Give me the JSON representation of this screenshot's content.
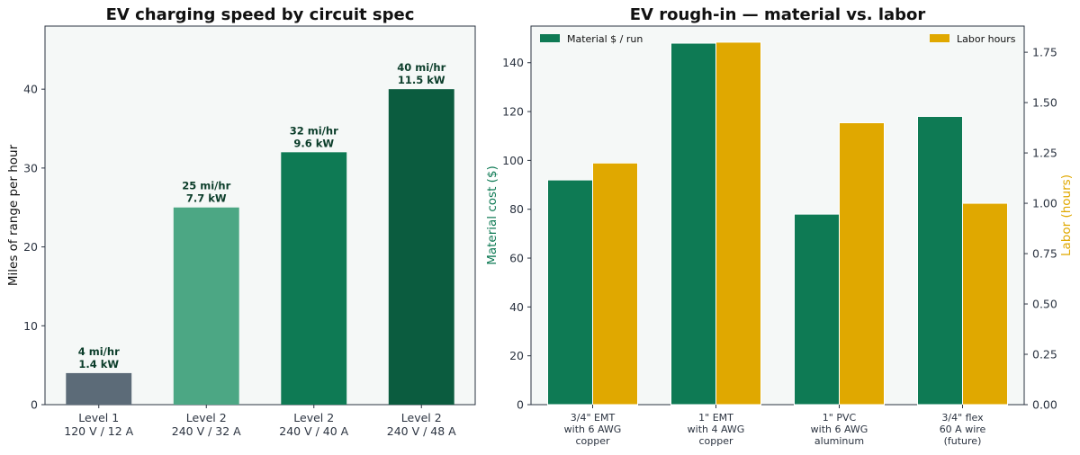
{
  "chart_data": [
    {
      "type": "bar",
      "title": "EV charging speed by circuit spec",
      "xlabel": "",
      "ylabel": "Miles of range per hour",
      "ylim": [
        0,
        48
      ],
      "yticks": [
        0,
        10,
        20,
        30,
        40
      ],
      "grid": false,
      "categories": [
        [
          "Level 1",
          "120 V / 12 A"
        ],
        [
          "Level 2",
          "240 V / 32 A"
        ],
        [
          "Level 2",
          "240 V / 40 A"
        ],
        [
          "Level 2",
          "240 V / 48 A"
        ]
      ],
      "values": [
        4,
        25,
        32,
        40
      ],
      "data_labels": [
        [
          "4 mi/hr",
          "1.4 kW"
        ],
        [
          "25 mi/hr",
          "7.7 kW"
        ],
        [
          "32 mi/hr",
          "9.6 kW"
        ],
        [
          "40 mi/hr",
          "11.5 kW"
        ]
      ],
      "colors": [
        "#5c6b78",
        "#4ca784",
        "#0e7a54",
        "#0b5c3f"
      ],
      "axis_label_color": "#111111"
    },
    {
      "type": "bar",
      "title": "EV rough-in — material vs. labor",
      "xlabel": "",
      "ylabel": "Material cost ($)",
      "y2label": "Labor (hours)",
      "ylim": [
        0,
        155
      ],
      "y2lim": [
        0,
        1.88
      ],
      "yticks": [
        0,
        20,
        40,
        60,
        80,
        100,
        120,
        140
      ],
      "y2ticks": [
        "0.00",
        "0.25",
        "0.50",
        "0.75",
        "1.00",
        "1.25",
        "1.50",
        "1.75"
      ],
      "grid": false,
      "categories": [
        [
          "3/4\" EMT",
          "with 6 AWG",
          "copper"
        ],
        [
          "1\" EMT",
          "with 4 AWG",
          "copper"
        ],
        [
          "1\" PVC",
          "with 6 AWG",
          "aluminum"
        ],
        [
          "3/4\" flex",
          "60 A wire",
          "(future)"
        ]
      ],
      "series": [
        {
          "name": "Material $ / run",
          "axis": "left",
          "values": [
            92,
            148,
            78,
            118
          ],
          "color": "#0e7a54"
        },
        {
          "name": "Labor hours",
          "axis": "right",
          "values": [
            1.2,
            1.8,
            1.4,
            1.0
          ],
          "color": "#e0a800"
        }
      ],
      "legend_placement": [
        "top-left",
        "top-right"
      ],
      "ylabel_color": "#0e7a54",
      "y2label_color": "#e0a800"
    }
  ]
}
